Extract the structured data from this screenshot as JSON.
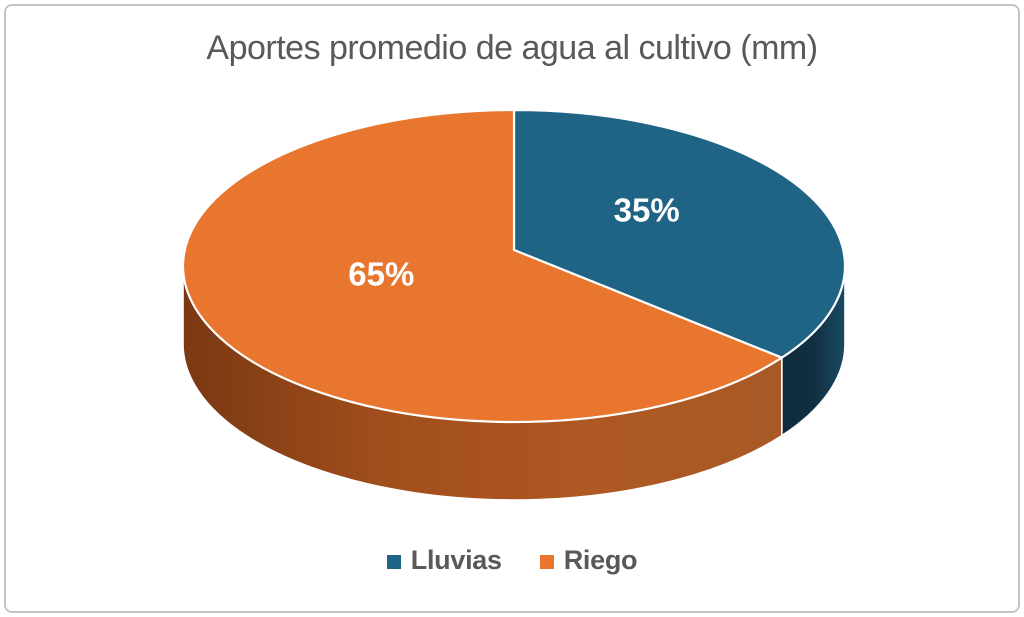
{
  "window": {
    "background": "#FFFFFF",
    "border_color": "#C4C4C4"
  },
  "chart_data": {
    "type": "pie",
    "variant": "3d-pie",
    "title": "Aportes promedio de agua al cultivo (mm)",
    "title_color": "#595959",
    "categories": [
      "Lluvias",
      "Riego"
    ],
    "values": [
      35,
      65
    ],
    "start_angle_deg": -90,
    "direction": "clockwise",
    "data_label_color": "#FFFFFF",
    "separator_color": "#FFFFFF",
    "legend_position": "bottom",
    "slices": [
      {
        "name": "Lluvias",
        "value": 35,
        "label": "35%",
        "top_color": "#1F6385",
        "side_gradient": [
          "#1A4A63",
          "#122F42",
          "#0F2C3E"
        ]
      },
      {
        "name": "Riego",
        "value": 65,
        "label": "65%",
        "top_color": "#E8762F",
        "side_gradient": [
          "#A85A26",
          "#AE5823",
          "#A14E1C",
          "#7A3812"
        ]
      }
    ],
    "legend": {
      "text_color": "#595959",
      "items": [
        {
          "label": "Lluvias",
          "color": "#1F6385"
        },
        {
          "label": "Riego",
          "color": "#E8762F"
        }
      ]
    }
  }
}
